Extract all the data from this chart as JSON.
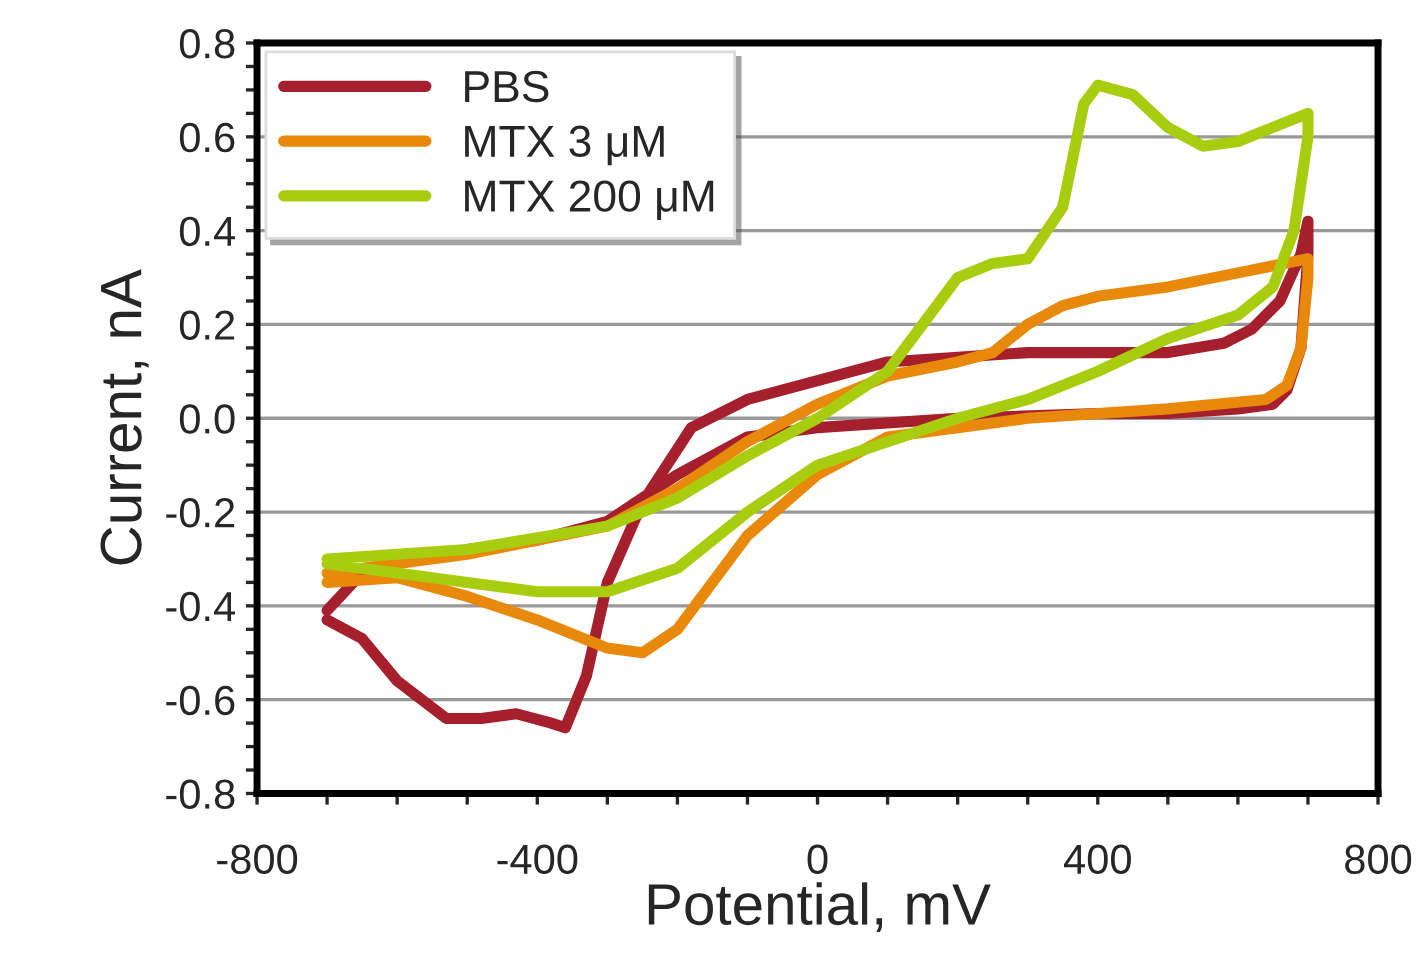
{
  "chart_data": {
    "type": "line",
    "xlabel": "Potential, mV",
    "ylabel": "Current, nA",
    "xlim": [
      -800,
      800
    ],
    "xticks": [
      -800,
      -400,
      {
        "value": 0,
        "label": "0"
      },
      400,
      800
    ],
    "ylim": [
      -0.8,
      0.8
    ],
    "yticks": [
      -0.8,
      -0.6,
      -0.4,
      -0.2,
      {
        "value": 0,
        "label": "0.0"
      },
      0.2,
      0.4,
      0.6,
      0.8
    ],
    "grid": "y",
    "legend": "top left",
    "marker": "none",
    "line_style": "solid",
    "series": [
      {
        "name": "PBS",
        "color": "#a51f2d",
        "x": [
          -700,
          -650,
          -600,
          -530,
          -480,
          -430,
          -380,
          -360,
          -330,
          -300,
          -250,
          -180,
          -100,
          0,
          100,
          200,
          300,
          400,
          500,
          580,
          620,
          660,
          690,
          700,
          700,
          690,
          670,
          650,
          600,
          500,
          400,
          200,
          0,
          -100,
          -200,
          -300,
          -400,
          -500,
          -600,
          -650,
          -700
        ],
        "values": [
          -0.43,
          -0.47,
          -0.56,
          -0.64,
          -0.64,
          -0.63,
          -0.65,
          -0.66,
          -0.55,
          -0.35,
          -0.18,
          -0.02,
          0.04,
          0.08,
          0.12,
          0.13,
          0.14,
          0.14,
          0.14,
          0.16,
          0.19,
          0.25,
          0.35,
          0.42,
          0.35,
          0.15,
          0.06,
          0.03,
          0.02,
          0.01,
          0.01,
          0.0,
          -0.02,
          -0.04,
          -0.12,
          -0.22,
          -0.26,
          -0.28,
          -0.31,
          -0.33,
          -0.41
        ]
      },
      {
        "name": "MTX 3 μM",
        "color": "#e8890c",
        "x": [
          -700,
          -500,
          -300,
          -200,
          -100,
          0,
          100,
          200,
          250,
          300,
          350,
          400,
          500,
          600,
          700,
          700,
          690,
          670,
          640,
          500,
          300,
          200,
          100,
          0,
          -100,
          -200,
          -250,
          -300,
          -400,
          -500,
          -600,
          -700
        ],
        "values": [
          -0.33,
          -0.29,
          -0.23,
          -0.15,
          -0.05,
          0.03,
          0.09,
          0.12,
          0.14,
          0.2,
          0.24,
          0.26,
          0.28,
          0.31,
          0.34,
          0.3,
          0.15,
          0.07,
          0.04,
          0.02,
          0.0,
          -0.02,
          -0.04,
          -0.12,
          -0.25,
          -0.45,
          -0.5,
          -0.49,
          -0.43,
          -0.38,
          -0.34,
          -0.35
        ]
      },
      {
        "name": "MTX 200 μM",
        "color": "#a8cc0e",
        "x": [
          -700,
          -500,
          -300,
          -200,
          -100,
          0,
          100,
          150,
          200,
          250,
          300,
          350,
          380,
          400,
          450,
          500,
          550,
          600,
          650,
          700,
          700,
          680,
          650,
          600,
          500,
          400,
          300,
          200,
          100,
          0,
          -100,
          -200,
          -300,
          -400,
          -500,
          -600,
          -700
        ],
        "values": [
          -0.3,
          -0.28,
          -0.23,
          -0.17,
          -0.08,
          0.0,
          0.1,
          0.2,
          0.3,
          0.33,
          0.34,
          0.45,
          0.67,
          0.71,
          0.69,
          0.62,
          0.58,
          0.59,
          0.62,
          0.65,
          0.6,
          0.4,
          0.28,
          0.22,
          0.17,
          0.1,
          0.04,
          0.0,
          -0.05,
          -0.1,
          -0.2,
          -0.32,
          -0.37,
          -0.37,
          -0.35,
          -0.33,
          -0.31
        ]
      }
    ]
  }
}
